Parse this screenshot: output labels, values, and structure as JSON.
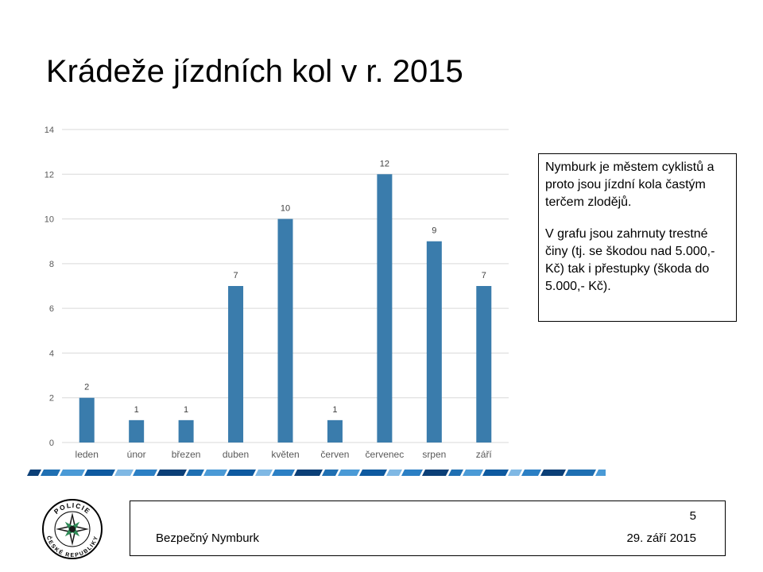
{
  "slide": {
    "title": "Krádeže jízdních kol v r. 2015",
    "note_p1": "Nymburk je městem cyklistů a proto jsou jízdní kola častým terčem zlodějů.",
    "note_p2": "V grafu jsou zahrnuty trestné činy (tj. se škodou nad 5.000,- Kč) tak i přestupky (škoda do 5.000,- Kč).",
    "page_number": "5",
    "footer_left": "Bezpečný Nymburk",
    "footer_date": "29. září 2015",
    "logo_text_top": "POLICIE",
    "logo_text_bottom": "ČESKÉ REPUBLIKY"
  },
  "colors": {
    "bar": "#3A7CAC",
    "grid": "#D9D9D9",
    "axis_text": "#595959"
  },
  "chart_data": {
    "type": "bar",
    "categories": [
      "leden",
      "únor",
      "březen",
      "duben",
      "květen",
      "červen",
      "červenec",
      "srpen",
      "září"
    ],
    "values": [
      2,
      1,
      1,
      7,
      10,
      1,
      12,
      9,
      7
    ],
    "yticks": [
      0,
      2,
      4,
      6,
      8,
      10,
      12,
      14
    ],
    "ylim": [
      0,
      14
    ],
    "grid": true
  }
}
